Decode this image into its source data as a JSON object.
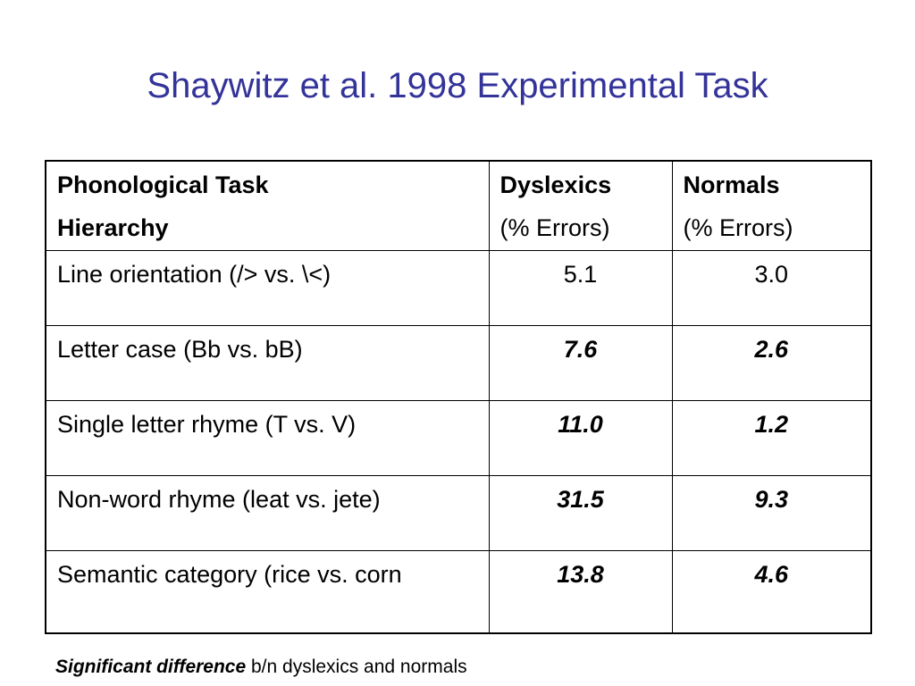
{
  "slide": {
    "title": "Shaywitz et al. 1998 Experimental Task",
    "title_color": "#333399"
  },
  "table": {
    "headers": [
      {
        "line1": "Phonological Task",
        "line2": "Hierarchy"
      },
      {
        "line1": "Dyslexics",
        "line2": "(% Errors)"
      },
      {
        "line1": "Normals",
        "line2": "(% Errors)"
      }
    ],
    "rows": [
      {
        "task": "Line orientation (/> vs. \\<)",
        "dyslexics": "5.1",
        "normals": "3.0",
        "significant": false
      },
      {
        "task": "Letter case (Bb vs. bB)",
        "dyslexics": "7.6",
        "normals": "2.6",
        "significant": true
      },
      {
        "task": "Single letter rhyme (T vs. V)",
        "dyslexics": "11.0",
        "normals": "1.2",
        "significant": true
      },
      {
        "task": "Non-word rhyme (leat vs. jete)",
        "dyslexics": "31.5",
        "normals": "9.3",
        "significant": true
      },
      {
        "task": "Semantic category (rice vs. corn",
        "dyslexics": "13.8",
        "normals": "4.6",
        "significant": true
      }
    ]
  },
  "footnote": {
    "emphasis": "Significant difference",
    "rest": " b/n dyslexics and normals"
  }
}
